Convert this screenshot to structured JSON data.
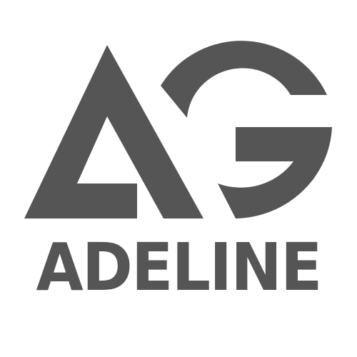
{
  "brand": {
    "wordmark": "ADELINE",
    "color": "#555555",
    "background": "#ffffff"
  },
  "icons": {
    "monogram": "ag-monogram-icon"
  }
}
